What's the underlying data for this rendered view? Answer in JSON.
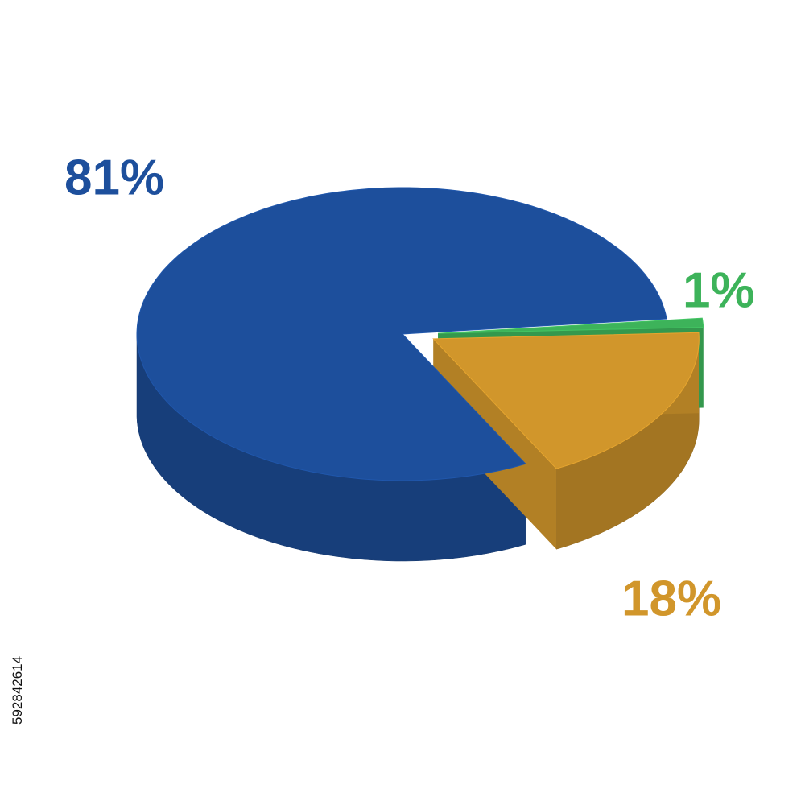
{
  "chart_data": {
    "type": "pie",
    "categories": [
      null,
      null,
      null
    ],
    "values": [
      81,
      1,
      18
    ],
    "value_labels": [
      "81%",
      "1%",
      "18%"
    ],
    "colors": [
      "#1d4f9c",
      "#3db35a",
      "#d1962b"
    ]
  },
  "stock_id": "592842614"
}
